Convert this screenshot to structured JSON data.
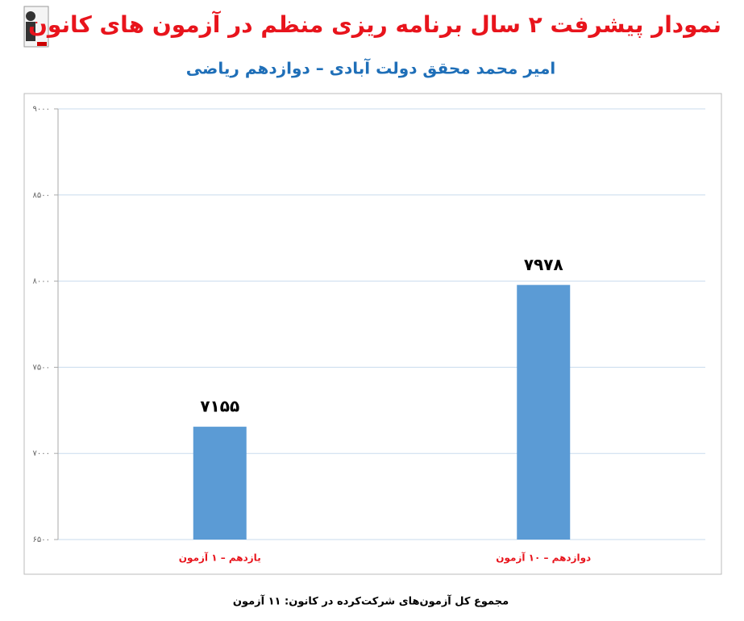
{
  "chart_data": {
    "type": "bar",
    "title": "نمودار پیشرفت ۲ سال برنامه ریزی منظم در آزمون های کانون",
    "subtitle": "امیر محمد محقق دولت آبادی – دوازدهم ریاضی",
    "categories": [
      "یازدهم – ۱ آزمون",
      "دوازدهم – ۱۰ آزمون"
    ],
    "values": [
      7155,
      7978
    ],
    "value_labels": [
      "۷۱۵۵",
      "۷۹۷۸"
    ],
    "color": "#5b9bd5",
    "ylim": [
      6500,
      9000
    ],
    "yticks": [
      {
        "value": 6500,
        "label": "۶۵۰۰"
      },
      {
        "value": 7000,
        "label": "۷۰۰۰"
      },
      {
        "value": 7500,
        "label": "۷۵۰۰"
      },
      {
        "value": 8000,
        "label": "۸۰۰۰"
      },
      {
        "value": 8500,
        "label": "۸۵۰۰"
      },
      {
        "value": 9000,
        "label": "۹۰۰۰"
      }
    ],
    "grid": true,
    "footer": "مجموع کل آزمون‌های شرکت‌کرده در کانون: ۱۱ آزمون"
  }
}
